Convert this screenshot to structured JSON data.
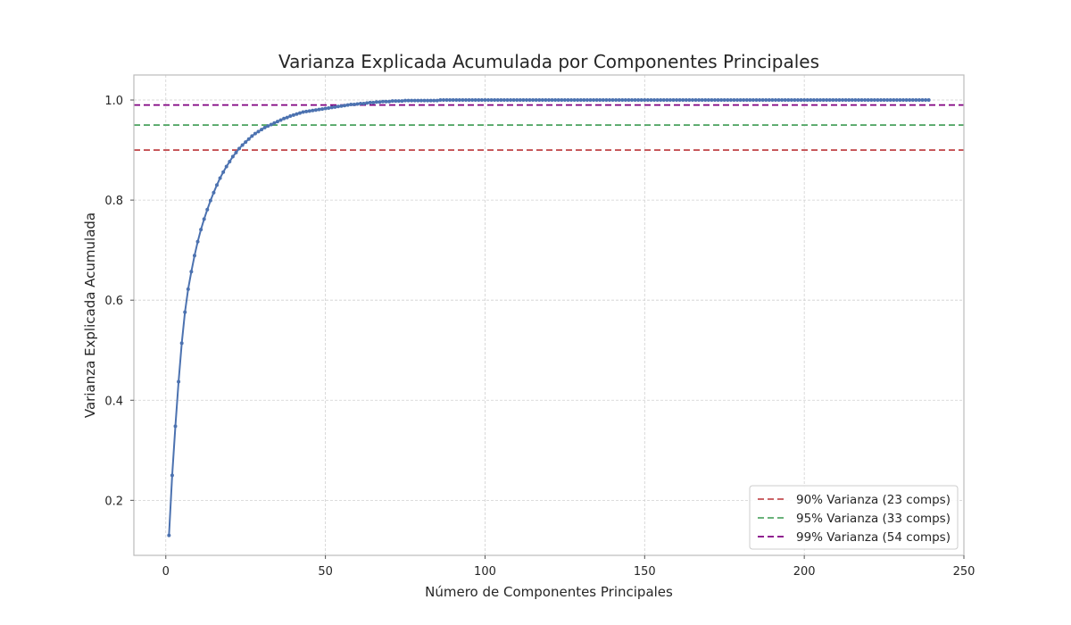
{
  "chart_data": {
    "type": "line",
    "title": "Varianza Explicada Acumulada por Componentes Principales",
    "xlabel": "Número de Componentes Principales",
    "ylabel": "Varianza Explicada Acumulada",
    "xlim": [
      -10,
      250
    ],
    "ylim": [
      0.09,
      1.05
    ],
    "xticks": [
      0,
      50,
      100,
      150,
      200,
      250
    ],
    "yticks": [
      0.2,
      0.4,
      0.6,
      0.8,
      1.0
    ],
    "xtick_labels": [
      "0",
      "50",
      "100",
      "150",
      "200",
      "250"
    ],
    "ytick_labels": [
      "0.2",
      "0.4",
      "0.6",
      "0.8",
      "1.0"
    ],
    "grid": true,
    "legend_position": "bottom-right",
    "series": [
      {
        "color": "#4c72b0",
        "marker": "dot",
        "x_start": 1,
        "x_end": 239,
        "values": [
          0.13,
          0.25,
          0.348,
          0.437,
          0.514,
          0.576,
          0.622,
          0.657,
          0.689,
          0.717,
          0.741,
          0.762,
          0.781,
          0.799,
          0.815,
          0.83,
          0.844,
          0.856,
          0.867,
          0.877,
          0.887,
          0.895,
          0.903,
          0.91,
          0.916,
          0.922,
          0.928,
          0.933,
          0.937,
          0.941,
          0.945,
          0.948,
          0.951,
          0.954,
          0.957,
          0.96,
          0.963,
          0.965,
          0.968,
          0.97,
          0.972,
          0.974,
          0.976,
          0.977,
          0.978,
          0.979,
          0.98,
          0.981,
          0.982,
          0.983,
          0.984,
          0.985,
          0.986,
          0.987,
          0.988,
          0.989,
          0.99,
          0.991,
          0.991,
          0.992,
          0.993,
          0.993,
          0.994,
          0.995,
          0.995,
          0.996,
          0.996,
          0.997,
          0.997,
          0.997,
          0.998,
          0.998,
          0.998,
          0.998,
          0.999,
          0.999,
          0.999,
          0.999,
          0.999,
          0.999,
          0.999,
          0.999,
          0.999,
          0.999,
          0.999,
          1.0
        ]
      }
    ],
    "thresholds": [
      {
        "y": 0.9,
        "color": "#c44e52",
        "label": "90% Varianza (23 comps)"
      },
      {
        "y": 0.95,
        "color": "#55a868",
        "label": "95% Varianza (33 comps)"
      },
      {
        "y": 0.99,
        "color": "#800080",
        "label": "99% Varianza (54 comps)"
      }
    ]
  }
}
